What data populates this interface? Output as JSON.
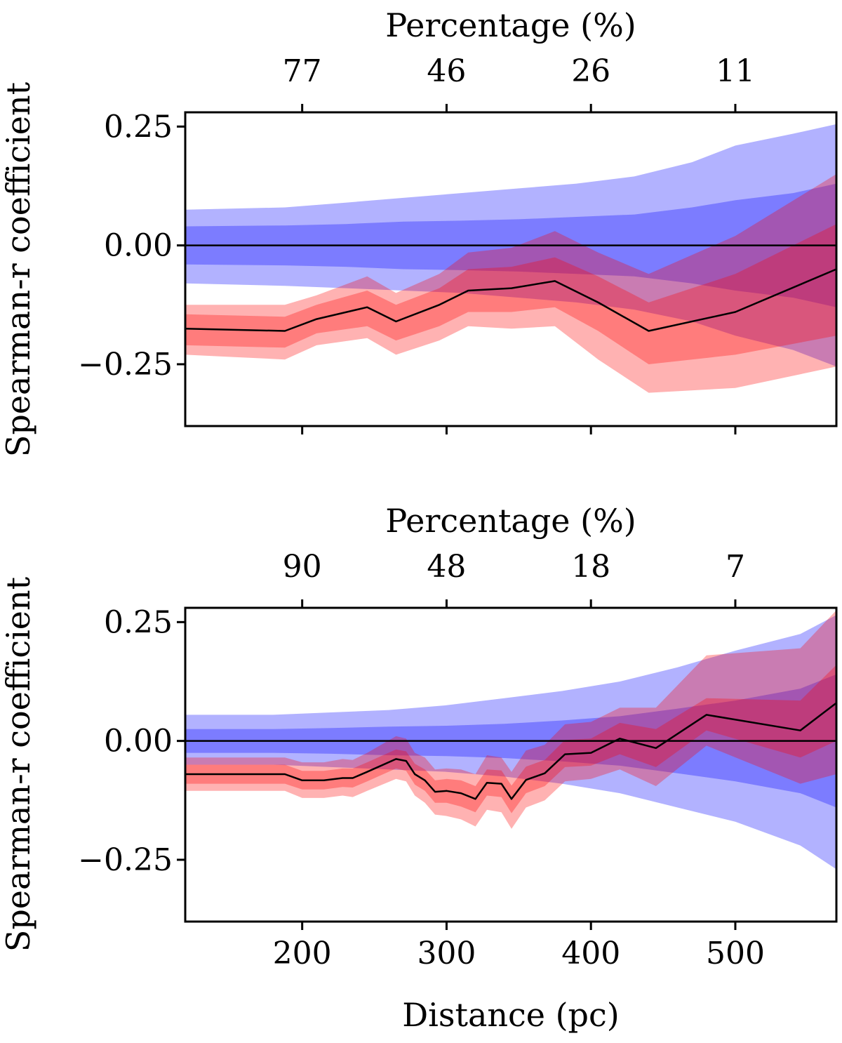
{
  "chart_data": [
    {
      "type": "line",
      "title": "",
      "xlabel": "",
      "ylabel": "Spearman-r coefficient",
      "top_axis_label": "Percentage (%)",
      "top_ticks": [
        {
          "x": 200,
          "label": "77"
        },
        {
          "x": 300,
          "label": "46"
        },
        {
          "x": 400,
          "label": "26"
        },
        {
          "x": 500,
          "label": "11"
        }
      ],
      "bottom_tick_labels_visible": false,
      "xlim": [
        119,
        570
      ],
      "ylim": [
        -0.38,
        0.28
      ],
      "yticks": [
        {
          "value": 0.25,
          "label": "0.25"
        },
        {
          "value": 0.0,
          "label": "0.00"
        },
        {
          "value": -0.25,
          "label": "−0.25"
        }
      ],
      "xticks": [
        200,
        300,
        400,
        500
      ],
      "colors": {
        "null_band": "#0000ff",
        "observed_band": "#ff0000",
        "line": "#000000"
      },
      "null_band": {
        "x": [
          119,
          188,
          230,
          270,
          310,
          350,
          390,
          430,
          470,
          500,
          540,
          570
        ],
        "outer_lo": [
          -0.08,
          -0.085,
          -0.09,
          -0.095,
          -0.1,
          -0.11,
          -0.12,
          -0.135,
          -0.16,
          -0.19,
          -0.22,
          -0.255
        ],
        "outer_hi": [
          0.075,
          0.08,
          0.09,
          0.1,
          0.11,
          0.12,
          0.13,
          0.145,
          0.175,
          0.21,
          0.235,
          0.255
        ],
        "inner_lo": [
          -0.04,
          -0.042,
          -0.045,
          -0.05,
          -0.052,
          -0.055,
          -0.06,
          -0.065,
          -0.08,
          -0.095,
          -0.11,
          -0.13
        ],
        "inner_hi": [
          0.04,
          0.042,
          0.045,
          0.05,
          0.052,
          0.055,
          0.06,
          0.065,
          0.08,
          0.095,
          0.11,
          0.13
        ]
      },
      "observed": {
        "x": [
          119,
          188,
          210,
          245,
          265,
          295,
          315,
          345,
          375,
          405,
          440,
          500,
          570
        ],
        "value": [
          -0.175,
          -0.18,
          -0.155,
          -0.13,
          -0.16,
          -0.125,
          -0.095,
          -0.09,
          -0.075,
          -0.12,
          -0.18,
          -0.14,
          -0.05
        ],
        "outer_lo": [
          -0.23,
          -0.24,
          -0.21,
          -0.195,
          -0.23,
          -0.2,
          -0.17,
          -0.175,
          -0.17,
          -0.24,
          -0.31,
          -0.3,
          -0.255
        ],
        "outer_hi": [
          -0.125,
          -0.125,
          -0.105,
          -0.065,
          -0.1,
          -0.06,
          -0.015,
          -0.005,
          0.03,
          -0.015,
          -0.06,
          0.02,
          0.15
        ],
        "inner_lo": [
          -0.21,
          -0.215,
          -0.185,
          -0.17,
          -0.2,
          -0.17,
          -0.14,
          -0.14,
          -0.13,
          -0.18,
          -0.25,
          -0.23,
          -0.19
        ],
        "inner_hi": [
          -0.145,
          -0.15,
          -0.125,
          -0.095,
          -0.125,
          -0.09,
          -0.05,
          -0.045,
          -0.025,
          -0.065,
          -0.12,
          -0.06,
          0.045
        ]
      }
    },
    {
      "type": "line",
      "title": "",
      "xlabel": "Distance (pc)",
      "ylabel": "Spearman-r coefficient",
      "top_axis_label": "Percentage (%)",
      "top_ticks": [
        {
          "x": 200,
          "label": "90"
        },
        {
          "x": 300,
          "label": "48"
        },
        {
          "x": 400,
          "label": "18"
        },
        {
          "x": 500,
          "label": "7"
        }
      ],
      "bottom_tick_labels_visible": true,
      "xlim": [
        119,
        570
      ],
      "ylim": [
        -0.38,
        0.28
      ],
      "yticks": [
        {
          "value": 0.25,
          "label": "0.25"
        },
        {
          "value": 0.0,
          "label": "0.00"
        },
        {
          "value": -0.25,
          "label": "−0.25"
        }
      ],
      "xticks": [
        {
          "value": 200,
          "label": "200"
        },
        {
          "value": 300,
          "label": "300"
        },
        {
          "value": 400,
          "label": "400"
        },
        {
          "value": 500,
          "label": "500"
        }
      ],
      "colors": {
        "null_band": "#0000ff",
        "observed_band": "#ff0000",
        "line": "#000000"
      },
      "null_band": {
        "x": [
          119,
          180,
          220,
          260,
          300,
          340,
          380,
          420,
          460,
          500,
          545,
          570
        ],
        "outer_lo": [
          -0.05,
          -0.05,
          -0.055,
          -0.06,
          -0.065,
          -0.075,
          -0.09,
          -0.11,
          -0.14,
          -0.17,
          -0.22,
          -0.27
        ],
        "outer_hi": [
          0.055,
          0.055,
          0.06,
          0.065,
          0.075,
          0.09,
          0.105,
          0.125,
          0.155,
          0.19,
          0.225,
          0.265
        ],
        "inner_lo": [
          -0.025,
          -0.025,
          -0.027,
          -0.03,
          -0.032,
          -0.036,
          -0.043,
          -0.052,
          -0.068,
          -0.085,
          -0.11,
          -0.14
        ],
        "inner_hi": [
          0.025,
          0.025,
          0.027,
          0.03,
          0.032,
          0.036,
          0.043,
          0.052,
          0.068,
          0.085,
          0.11,
          0.14
        ]
      },
      "observed": {
        "x": [
          119,
          188,
          200,
          215,
          228,
          235,
          245,
          265,
          272,
          278,
          285,
          292,
          300,
          310,
          320,
          328,
          338,
          345,
          355,
          368,
          382,
          400,
          420,
          445,
          480,
          545,
          570
        ],
        "value": [
          -0.07,
          -0.07,
          -0.083,
          -0.083,
          -0.078,
          -0.078,
          -0.065,
          -0.038,
          -0.042,
          -0.07,
          -0.083,
          -0.107,
          -0.105,
          -0.11,
          -0.122,
          -0.088,
          -0.09,
          -0.122,
          -0.082,
          -0.068,
          -0.028,
          -0.025,
          0.005,
          -0.015,
          0.055,
          0.022,
          0.08
        ],
        "outer_lo": [
          -0.105,
          -0.105,
          -0.12,
          -0.12,
          -0.115,
          -0.118,
          -0.105,
          -0.08,
          -0.085,
          -0.115,
          -0.13,
          -0.155,
          -0.158,
          -0.165,
          -0.18,
          -0.145,
          -0.15,
          -0.185,
          -0.14,
          -0.125,
          -0.085,
          -0.08,
          -0.06,
          -0.095,
          -0.01,
          -0.09,
          -0.07
        ],
        "outer_hi": [
          -0.035,
          -0.035,
          -0.045,
          -0.045,
          -0.038,
          -0.04,
          -0.025,
          0.01,
          0.005,
          -0.025,
          -0.035,
          -0.06,
          -0.058,
          -0.06,
          -0.07,
          -0.03,
          -0.035,
          -0.065,
          -0.02,
          -0.008,
          0.035,
          0.04,
          0.07,
          0.07,
          0.18,
          0.195,
          0.275
        ],
        "inner_lo": [
          -0.09,
          -0.09,
          -0.102,
          -0.102,
          -0.097,
          -0.098,
          -0.085,
          -0.058,
          -0.063,
          -0.092,
          -0.105,
          -0.13,
          -0.13,
          -0.138,
          -0.15,
          -0.115,
          -0.118,
          -0.152,
          -0.11,
          -0.095,
          -0.055,
          -0.052,
          -0.028,
          -0.055,
          0.022,
          -0.035,
          0.0
        ],
        "inner_hi": [
          -0.05,
          -0.05,
          -0.063,
          -0.063,
          -0.058,
          -0.058,
          -0.045,
          -0.018,
          -0.022,
          -0.048,
          -0.06,
          -0.083,
          -0.08,
          -0.083,
          -0.095,
          -0.06,
          -0.062,
          -0.094,
          -0.054,
          -0.04,
          0.002,
          0.005,
          0.038,
          0.025,
          0.09,
          0.085,
          0.16
        ]
      }
    }
  ]
}
